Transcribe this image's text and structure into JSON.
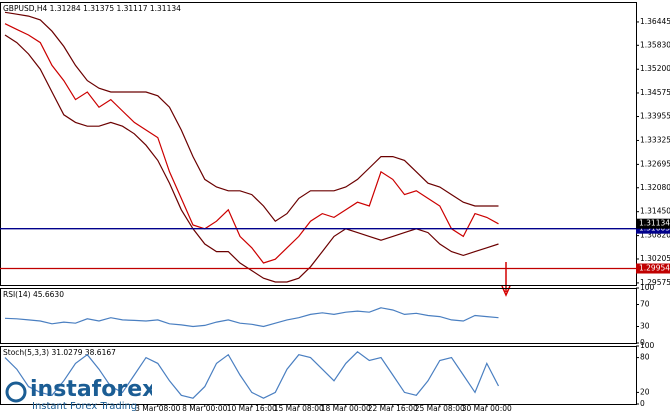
{
  "chart_data": [
    {
      "type": "line",
      "title": "GBPUSD,H4  1.31284 1.31375 1.31117 1.31134",
      "categories": [
        null,
        null,
        null,
        null,
        null,
        null,
        null,
        null,
        null,
        null,
        null,
        null,
        null,
        "3 Mar 08:00",
        null,
        null,
        null,
        "8 Mar 00:00",
        null,
        null,
        null,
        "10 Mar 16:00",
        null,
        null,
        null,
        "15 Mar 08:00",
        null,
        null,
        null,
        "18 Mar 00:00",
        null,
        null,
        null,
        "22 Mar 16:00",
        null,
        null,
        null,
        "25 Mar 08:00",
        null,
        null,
        null,
        "30 Mar 00:00",
        null
      ],
      "series": [
        {
          "color": "#6b0000",
          "values": [
            1.367,
            1.3665,
            1.366,
            1.365,
            1.362,
            1.358,
            1.353,
            1.349,
            1.347,
            1.346,
            1.346,
            1.346,
            1.346,
            1.345,
            1.342,
            1.336,
            1.329,
            1.323,
            1.321,
            1.32,
            1.32,
            1.319,
            1.316,
            1.312,
            1.314,
            1.318,
            1.32,
            1.32,
            1.32,
            1.321,
            1.323,
            1.326,
            1.329,
            1.329,
            1.328,
            1.325,
            1.322,
            1.321,
            1.319,
            1.317,
            1.316,
            1.316,
            1.316
          ]
        },
        {
          "color": "#6b0000",
          "values": [
            1.361,
            1.359,
            1.356,
            1.352,
            1.346,
            1.34,
            1.338,
            1.337,
            1.337,
            1.338,
            1.337,
            1.335,
            1.332,
            1.328,
            1.322,
            1.315,
            1.31,
            1.306,
            1.304,
            1.304,
            1.301,
            1.299,
            1.297,
            1.296,
            1.296,
            1.297,
            1.3,
            1.304,
            1.308,
            1.31,
            1.309,
            1.308,
            1.307,
            1.308,
            1.309,
            1.31,
            1.309,
            1.306,
            1.304,
            1.303,
            1.304,
            1.305,
            1.306
          ]
        },
        {
          "color": "#cc0000",
          "values": [
            1.364,
            1.3625,
            1.361,
            1.359,
            1.353,
            1.349,
            1.344,
            1.346,
            1.342,
            1.344,
            1.341,
            1.338,
            1.336,
            1.334,
            1.325,
            1.318,
            1.311,
            1.31,
            1.312,
            1.315,
            1.308,
            1.305,
            1.301,
            1.302,
            1.305,
            1.308,
            1.312,
            1.314,
            1.313,
            1.315,
            1.317,
            1.316,
            1.325,
            1.323,
            1.319,
            1.32,
            1.318,
            1.316,
            1.31,
            1.308,
            1.314,
            1.313,
            1.3113
          ]
        }
      ],
      "ylim": [
        1.2952,
        1.3697
      ],
      "yticks": [
        1.36445,
        {
          "value": 1.3583,
          "label": "1.35830"
        },
        {
          "value": 1.352,
          "label": "1.35200"
        },
        1.34575,
        1.33955,
        1.33325,
        1.32695,
        {
          "value": 1.3208,
          "label": "1.32080"
        },
        {
          "value": 1.3145,
          "label": "1.31450"
        },
        {
          "value": 1.3082,
          "label": "1.30820"
        },
        1.30205,
        1.29575
      ],
      "levels": [
        {
          "value": 1.31003,
          "color": "#00008b"
        },
        {
          "value": 1.29954,
          "color": "#c00000"
        },
        {
          "value": 1.31134,
          "color": "#000000"
        }
      ]
    },
    {
      "type": "line",
      "title": "RSI(14) 45.6630",
      "color": "#4a7fc1",
      "values": [
        45,
        44,
        42,
        40,
        35,
        38,
        36,
        44,
        40,
        46,
        42,
        41,
        40,
        42,
        35,
        33,
        30,
        32,
        38,
        42,
        36,
        34,
        30,
        36,
        42,
        46,
        52,
        55,
        52,
        56,
        58,
        56,
        64,
        60,
        52,
        54,
        50,
        48,
        42,
        40,
        50,
        48,
        46
      ],
      "ylim": [
        0,
        100
      ],
      "yticks": [
        0,
        30,
        70,
        100
      ]
    },
    {
      "type": "line",
      "title": "Stoch(5,3,3) 31.0279 38.6167",
      "color": "#4a7fc1",
      "values": [
        80,
        60,
        30,
        20,
        15,
        40,
        70,
        85,
        60,
        30,
        20,
        50,
        80,
        70,
        40,
        15,
        10,
        30,
        70,
        85,
        50,
        20,
        10,
        20,
        60,
        85,
        80,
        60,
        40,
        70,
        90,
        75,
        80,
        50,
        20,
        15,
        40,
        75,
        80,
        50,
        20,
        70,
        31
      ],
      "ylim": [
        0,
        100
      ],
      "yticks": [
        0,
        20,
        80,
        100
      ]
    }
  ],
  "watermark": {
    "brand": "instaforex",
    "tagline": "Instant Forex Trading"
  }
}
